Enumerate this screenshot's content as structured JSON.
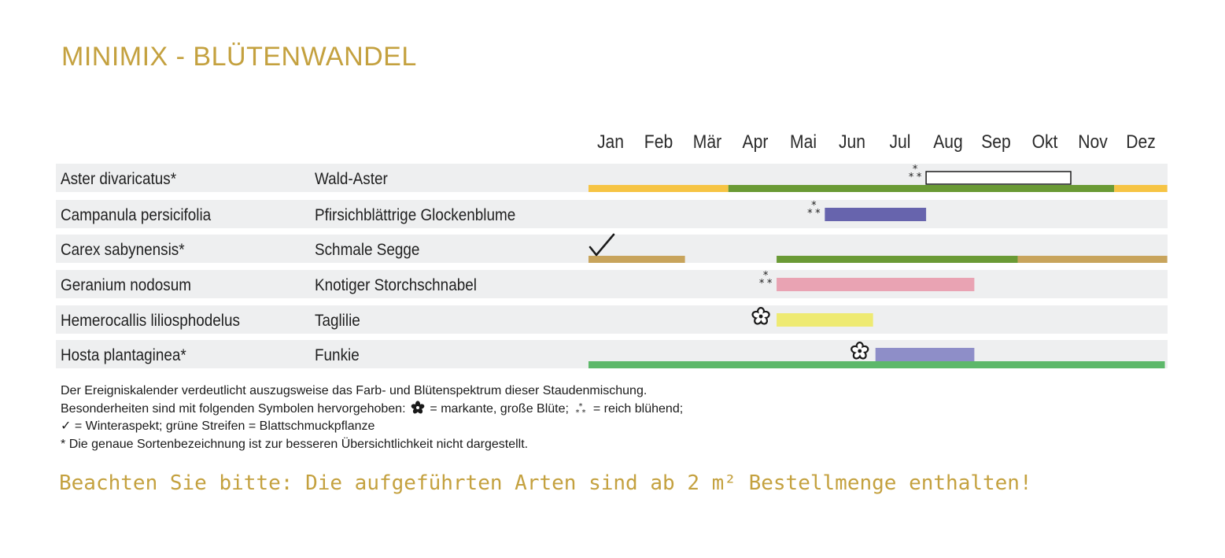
{
  "title": "MINIMIX - BLÜTENWANDEL",
  "chart_data": {
    "type": "table",
    "months": [
      "Jan",
      "Feb",
      "Mär",
      "Apr",
      "Mai",
      "Jun",
      "Jul",
      "Aug",
      "Sep",
      "Okt",
      "Nov",
      "Dez"
    ],
    "rows": [
      {
        "latin": "Aster divaricatus*",
        "common": "Wald-Aster",
        "symbol": "reich-bluehend",
        "symbol_at": 7.0,
        "flower": {
          "start": 7.0,
          "end": 10.0,
          "color": "#ffffff",
          "outlined": true
        },
        "foliage": [
          {
            "start": 0.0,
            "end": 2.9,
            "color": "#f6c444"
          },
          {
            "start": 2.9,
            "end": 10.9,
            "color": "#6a9a35"
          },
          {
            "start": 10.9,
            "end": 12.0,
            "color": "#f6c444"
          }
        ]
      },
      {
        "latin": "Campanula persicifolia",
        "common": "Pfirsichblättrige Glockenblume",
        "symbol": "reich-bluehend",
        "symbol_at": 4.9,
        "flower": {
          "start": 4.9,
          "end": 7.0,
          "color": "#6764ad",
          "outlined": false
        },
        "foliage": []
      },
      {
        "latin": "Carex sabynensis*",
        "common": "Schmale Segge",
        "symbol": "winteraspekt",
        "symbol_at": 0.0,
        "flower": null,
        "foliage": [
          {
            "start": 0.0,
            "end": 2.0,
            "color": "#c8a45c"
          },
          {
            "start": 3.9,
            "end": 8.9,
            "color": "#6a9a35"
          },
          {
            "start": 8.9,
            "end": 12.0,
            "color": "#c8a45c"
          }
        ]
      },
      {
        "latin": "Geranium nodosum",
        "common": "Knotiger Storchschnabel",
        "symbol": "reich-bluehend",
        "symbol_at": 3.9,
        "flower": {
          "start": 3.9,
          "end": 8.0,
          "color": "#e9a3b3",
          "outlined": false
        },
        "foliage": []
      },
      {
        "latin": "Hemerocallis liliosphodelus",
        "common": "Taglilie",
        "symbol": "markante-bluete",
        "symbol_at": 3.9,
        "flower": {
          "start": 3.9,
          "end": 5.9,
          "color": "#eeea72",
          "outlined": false
        },
        "foliage": []
      },
      {
        "latin": "Hosta plantaginea*",
        "common": "Funkie",
        "symbol": "markante-bluete",
        "symbol_at": 5.95,
        "flower": {
          "start": 5.95,
          "end": 8.0,
          "color": "#8e8ec8",
          "outlined": false
        },
        "foliage": [
          {
            "start": 0.0,
            "end": 11.95,
            "color": "#5db86a"
          }
        ]
      }
    ]
  },
  "legend": {
    "line1": "Der Ereigniskalender verdeutlicht auszugsweise das Farb- und Blütenspektrum dieser Staudenmischung.",
    "line2a": "Besonderheiten sind mit folgenden Symbolen hervorgehoben:",
    "line2b": "= markante, große Blüte;",
    "line2c": "= reich blühend;",
    "line3a": "✓",
    "line3b": "= Winteraspekt; grüne Streifen = Blattschmuckpflanze",
    "line4a": "*",
    "line4b": "Die genaue Sortenbezeichnung ist zur besseren Übersichtlichkeit nicht dargestellt."
  },
  "notice": "Beachten Sie bitte: Die aufgeführten Arten sind ab 2 m² Bestellmenge enthalten!",
  "icons": {
    "markante-bluete": "big-flower-icon",
    "reich-bluehend": "three-asterisks-icon",
    "winteraspekt": "checkmark-icon"
  }
}
